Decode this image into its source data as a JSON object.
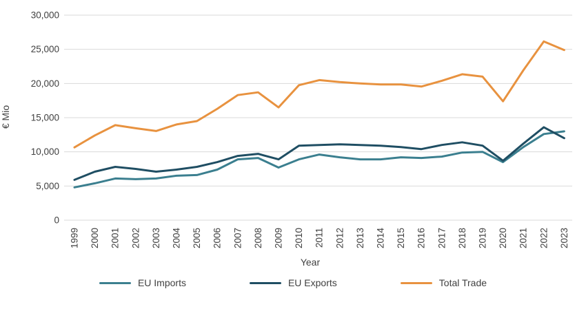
{
  "chart_data": {
    "type": "line",
    "title": "",
    "xlabel": "Year",
    "ylabel": "€ Mio",
    "x": [
      "1999",
      "2000",
      "2001",
      "2002",
      "2003",
      "2004",
      "2005",
      "2006",
      "2007",
      "2008",
      "2009",
      "2010",
      "2011",
      "2012",
      "2013",
      "2014",
      "2015",
      "2016",
      "2017",
      "2018",
      "2019",
      "2020",
      "2021",
      "2022",
      "2023"
    ],
    "series": [
      {
        "name": "EU Imports",
        "color": "#3b7f8f",
        "values": [
          4800,
          5400,
          6100,
          6000,
          6100,
          6500,
          6600,
          7400,
          8900,
          9100,
          7700,
          8900,
          9600,
          9200,
          8900,
          8900,
          9200,
          9100,
          9300,
          9900,
          10000,
          8500,
          10700,
          12600,
          13000
        ]
      },
      {
        "name": "EU Exports",
        "color": "#1f4e63",
        "values": [
          5900,
          7100,
          7800,
          7500,
          7100,
          7400,
          7800,
          8500,
          9400,
          9700,
          8900,
          10900,
          11000,
          11100,
          11000,
          10900,
          10700,
          10400,
          11000,
          11400,
          10900,
          8700,
          11200,
          13600,
          12000
        ]
      },
      {
        "name": "Total Trade",
        "color": "#e8923f",
        "values": [
          10650,
          12400,
          13900,
          13450,
          13050,
          14000,
          14500,
          16300,
          18300,
          18700,
          16500,
          19750,
          20500,
          20200,
          20000,
          19850,
          19850,
          19550,
          20400,
          21350,
          21000,
          17400,
          21950,
          26150,
          24900
        ]
      }
    ],
    "ylim": [
      0,
      30000
    ],
    "yticks": [
      0,
      5000,
      10000,
      15000,
      20000,
      25000,
      30000
    ],
    "ytick_labels": [
      "0",
      "5,000",
      "10,000",
      "15,000",
      "20,000",
      "25,000",
      "30,000"
    ],
    "grid": true,
    "legend_position": "bottom"
  },
  "style": {
    "gridline_color": "#d9d9d9",
    "tick_label_color": "#404040",
    "background": "#ffffff"
  }
}
